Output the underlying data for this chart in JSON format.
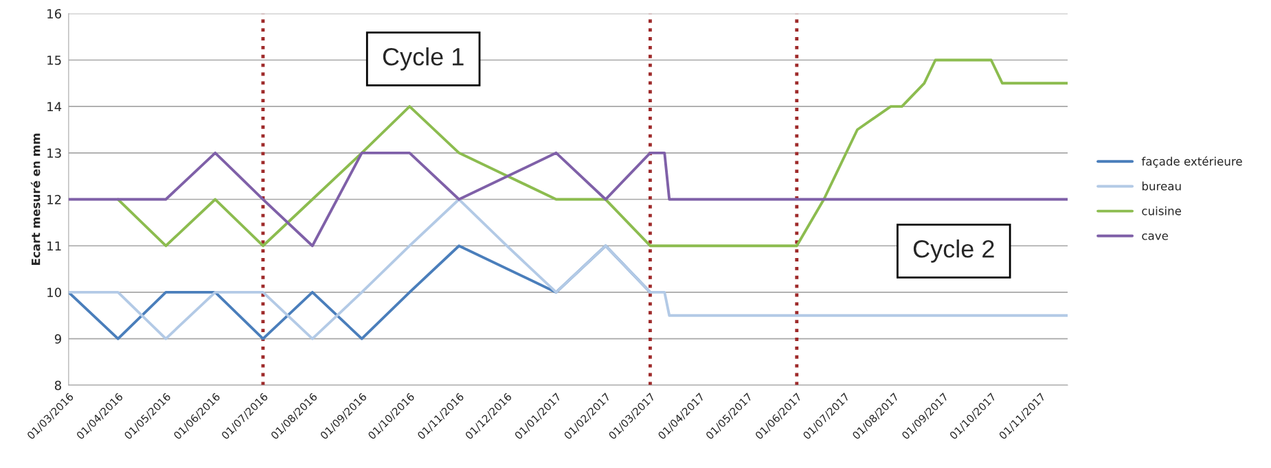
{
  "chart_data": {
    "type": "line",
    "ylabel": "Ecart mesuré en mm",
    "xlim": [
      "2016-03-01",
      "2017-11-18"
    ],
    "xticks": [
      {
        "value": "2016-03-01",
        "label": "01/03/2016"
      },
      {
        "value": "2016-04-01",
        "label": "01/04/2016"
      },
      {
        "value": "2016-05-01",
        "label": "01/05/2016"
      },
      {
        "value": "2016-06-01",
        "label": "01/06/2016"
      },
      {
        "value": "2016-07-01",
        "label": "01/07/2016"
      },
      {
        "value": "2016-08-01",
        "label": "01/08/2016"
      },
      {
        "value": "2016-09-01",
        "label": "01/09/2016"
      },
      {
        "value": "2016-10-01",
        "label": "01/10/2016"
      },
      {
        "value": "2016-11-01",
        "label": "01/11/2016"
      },
      {
        "value": "2016-12-01",
        "label": "01/12/2016"
      },
      {
        "value": "2017-01-01",
        "label": "01/01/2017"
      },
      {
        "value": "2017-02-01",
        "label": "01/02/2017"
      },
      {
        "value": "2017-03-01",
        "label": "01/03/2017"
      },
      {
        "value": "2017-04-01",
        "label": "01/04/2017"
      },
      {
        "value": "2017-05-01",
        "label": "01/05/2017"
      },
      {
        "value": "2017-06-01",
        "label": "01/06/2017"
      },
      {
        "value": "2017-07-01",
        "label": "01/07/2017"
      },
      {
        "value": "2017-08-01",
        "label": "01/08/2017"
      },
      {
        "value": "2017-09-01",
        "label": "01/09/2017"
      },
      {
        "value": "2017-10-01",
        "label": "01/10/2017"
      },
      {
        "value": "2017-11-01",
        "label": "01/11/2017"
      }
    ],
    "ylim": [
      8,
      16
    ],
    "yticks": [
      8,
      9,
      10,
      11,
      12,
      13,
      14,
      15,
      16
    ],
    "grid": "y",
    "legend": "right",
    "marker": "none",
    "line_style": "solid",
    "series": [
      {
        "name": "façade extérieure",
        "color": "#4a7ebb",
        "x": [
          "2016-03-01",
          "2016-04-01",
          "2016-05-01",
          "2016-06-01",
          "2016-07-01",
          "2016-08-01",
          "2016-09-01",
          "2016-10-01",
          "2016-11-01",
          "2017-01-01",
          "2017-02-01",
          "2017-03-01"
        ],
        "values": [
          10,
          9,
          10,
          10,
          9,
          10,
          9,
          10,
          11,
          10,
          11,
          10
        ]
      },
      {
        "name": "bureau",
        "color": "#b3cae6",
        "x": [
          "2016-03-01",
          "2016-04-01",
          "2016-05-01",
          "2016-06-01",
          "2016-07-01",
          "2016-08-01",
          "2016-09-01",
          "2016-10-01",
          "2016-11-01",
          "2016-12-01",
          "2017-01-01",
          "2017-02-01",
          "2017-03-01",
          "2017-03-10",
          "2017-03-13",
          "2017-11-18"
        ],
        "values": [
          10,
          10,
          9,
          10,
          10,
          9,
          10,
          11,
          12,
          11,
          10,
          11,
          10,
          10,
          9.5,
          9.5
        ]
      },
      {
        "name": "cuisine",
        "color": "#8cbc4f",
        "x": [
          "2016-04-01",
          "2016-05-01",
          "2016-06-01",
          "2016-07-01",
          "2016-08-01",
          "2016-09-01",
          "2016-10-01",
          "2016-11-01",
          "2017-01-01",
          "2017-02-01",
          "2017-03-01",
          "2017-06-01",
          "2017-06-18",
          "2017-07-09",
          "2017-07-30",
          "2017-08-06",
          "2017-08-20",
          "2017-08-27",
          "2017-10-01",
          "2017-10-08",
          "2017-11-18"
        ],
        "values": [
          12,
          11,
          12,
          11,
          12,
          13,
          14,
          13,
          12,
          12,
          11,
          11,
          12,
          13.5,
          14,
          14,
          14.5,
          15,
          15,
          14.5,
          14.5
        ]
      },
      {
        "name": "cave",
        "color": "#7f60a8",
        "x": [
          "2016-03-01",
          "2016-04-01",
          "2016-05-01",
          "2016-06-01",
          "2016-07-01",
          "2016-08-01",
          "2016-09-01",
          "2016-10-01",
          "2016-11-01",
          "2017-01-01",
          "2017-02-01",
          "2017-03-01",
          "2017-03-10",
          "2017-03-13",
          "2017-11-18"
        ],
        "values": [
          12,
          12,
          12,
          13,
          12,
          11,
          13,
          13,
          12,
          13,
          12,
          13,
          13,
          12,
          12
        ]
      }
    ],
    "ref_lines": [
      {
        "axis": "x",
        "value": "2016-07-01",
        "color": "#9e2a2a",
        "line_style": "dotted"
      },
      {
        "axis": "x",
        "value": "2017-03-01",
        "color": "#9e2a2a",
        "line_style": "dotted"
      },
      {
        "axis": "x",
        "value": "2017-06-01",
        "color": "#9e2a2a",
        "line_style": "dotted"
      }
    ],
    "annotations": [
      "Cycle 1",
      "Cycle 2"
    ]
  }
}
